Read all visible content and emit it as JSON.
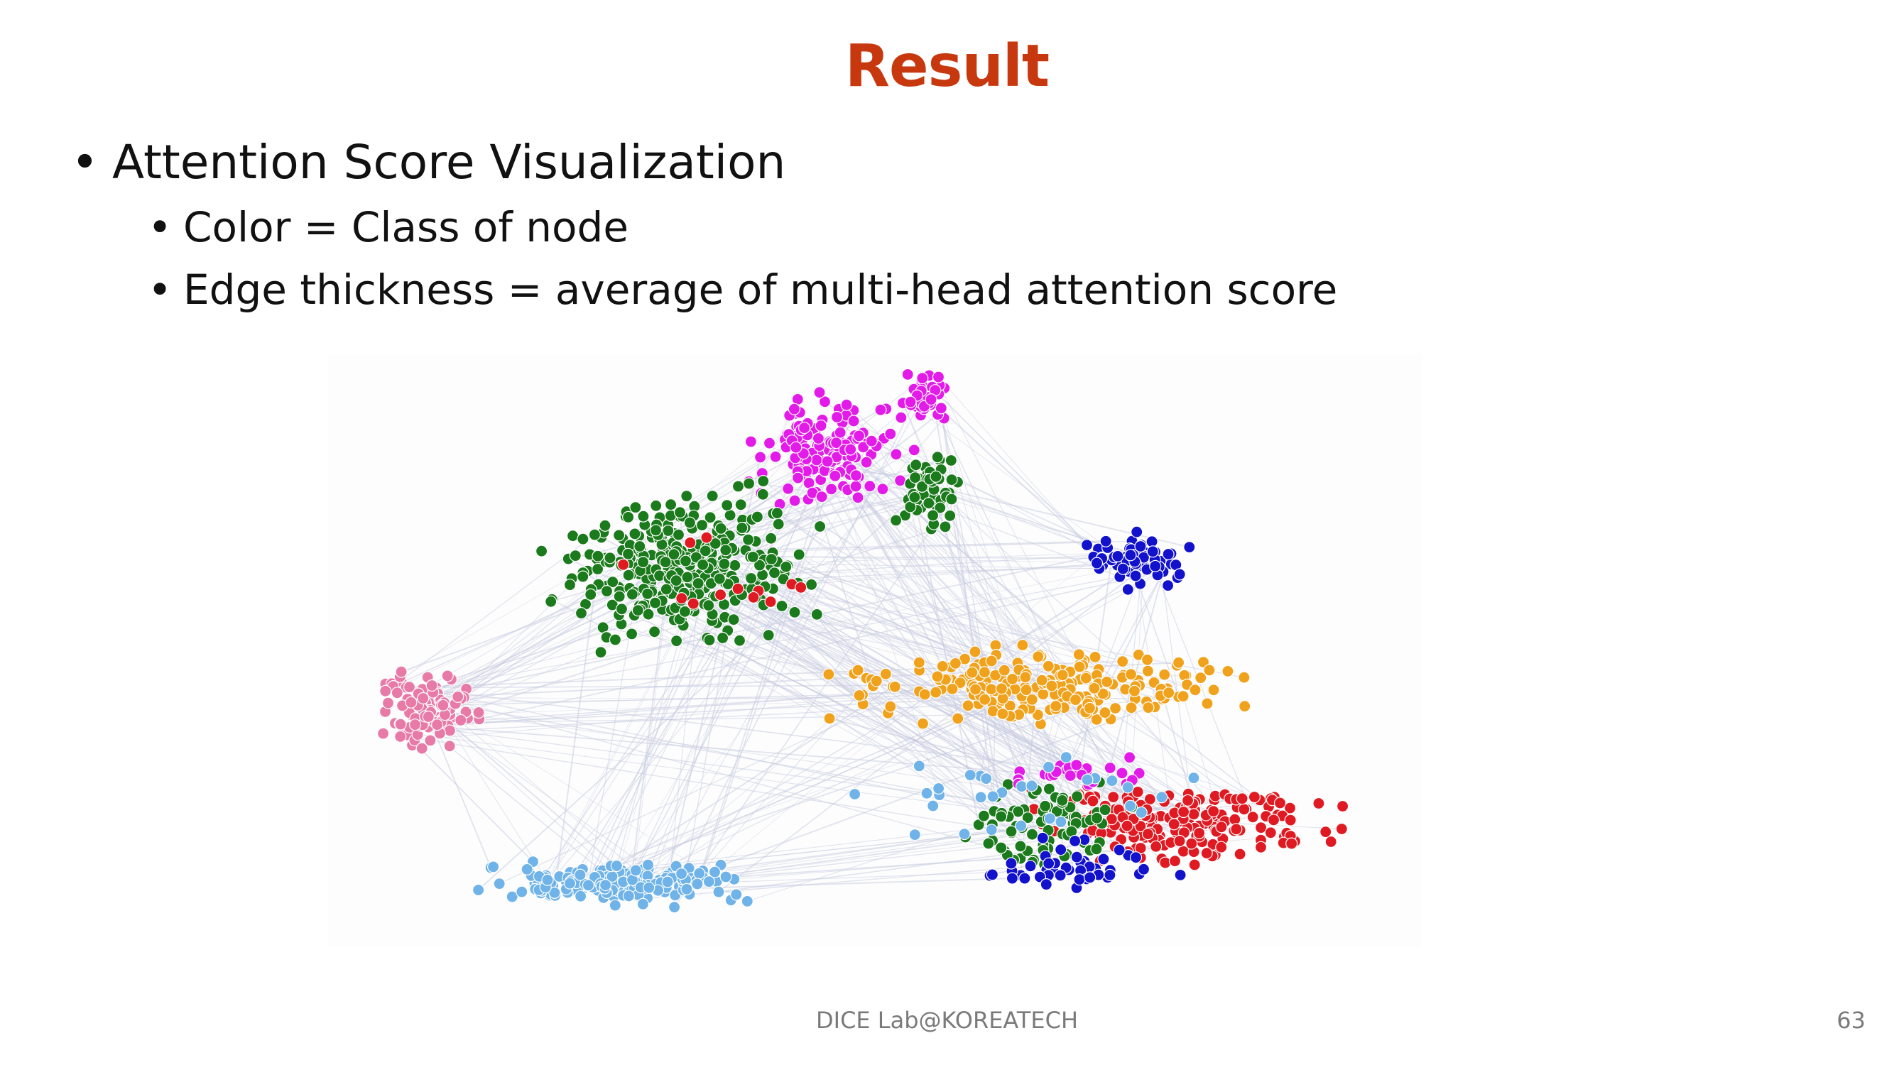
{
  "slide": {
    "title": "Result",
    "bullets": [
      {
        "level": 1,
        "text": "Attention Score Visualization"
      },
      {
        "level": 2,
        "text": "Color = Class of node"
      },
      {
        "level": 2,
        "text": "Edge thickness = average of multi-head attention score"
      }
    ],
    "bullet_char": "•",
    "footer": "DICE Lab@KOREATECH",
    "page_number": "63"
  },
  "figure": {
    "node_colors": {
      "magenta": "#e31be8",
      "green": "#1b7a1b",
      "blue": "#1212cc",
      "orange": "#f0a21c",
      "pink": "#e87aa8",
      "red": "#e01a22",
      "lightblue": "#6fb3e8"
    },
    "edge_color": "#c7cbe0"
  }
}
